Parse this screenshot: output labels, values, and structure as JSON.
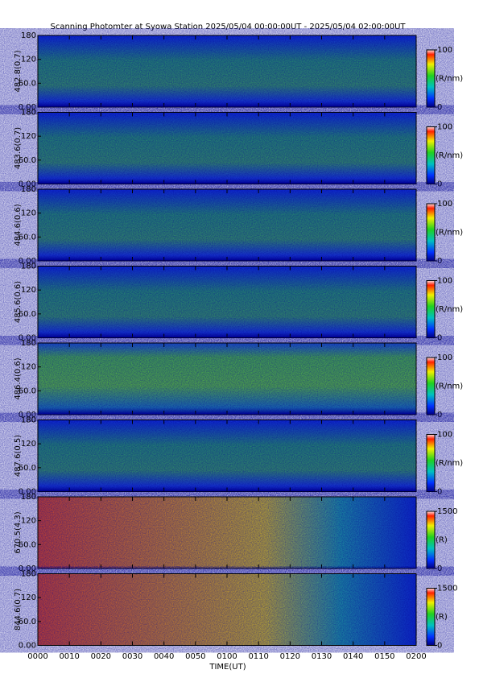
{
  "title": "Scanning Photomter at Syowa Station  2025/05/04 00:00:00UT - 2025/05/04 02:00:00UT",
  "xlabel": "TIME(UT)",
  "xlim": [
    0,
    120
  ],
  "xticks": [
    {
      "value": 0,
      "label": "0000"
    },
    {
      "value": 10,
      "label": "0010"
    },
    {
      "value": 20,
      "label": "0020"
    },
    {
      "value": 30,
      "label": "0030"
    },
    {
      "value": 40,
      "label": "0040"
    },
    {
      "value": 50,
      "label": "0050"
    },
    {
      "value": 60,
      "label": "0100"
    },
    {
      "value": 70,
      "label": "0110"
    },
    {
      "value": 80,
      "label": "0120"
    },
    {
      "value": 90,
      "label": "0130"
    },
    {
      "value": 100,
      "label": "0140"
    },
    {
      "value": 110,
      "label": "0150"
    },
    {
      "value": 120,
      "label": "0200"
    }
  ],
  "chart_data": [
    {
      "type": "heatmap",
      "ylabel": "482.8(0.7)",
      "ylim": [
        0,
        180
      ],
      "yticks": [
        {
          "value": 0,
          "label": "0.00"
        },
        {
          "value": 60,
          "label": "60.0"
        },
        120,
        180
      ],
      "colorbar": {
        "lim": [
          0,
          100
        ],
        "ticks": [
          0,
          100
        ],
        "label": "(R/nm)"
      }
    },
    {
      "type": "heatmap",
      "ylabel": "483.6(0.7)",
      "ylim": [
        0,
        180
      ],
      "yticks": [
        {
          "value": 0,
          "label": "0.00"
        },
        {
          "value": 60,
          "label": "60.0"
        },
        120,
        180
      ],
      "colorbar": {
        "lim": [
          0,
          100
        ],
        "ticks": [
          0,
          100
        ],
        "label": "(R/nm)"
      }
    },
    {
      "type": "heatmap",
      "ylabel": "484.6(0.6)",
      "ylim": [
        0,
        180
      ],
      "yticks": [
        {
          "value": 0,
          "label": "0.00"
        },
        {
          "value": 60,
          "label": "60.0"
        },
        120,
        180
      ],
      "colorbar": {
        "lim": [
          0,
          100
        ],
        "ticks": [
          0,
          100
        ],
        "label": "(R/nm)"
      }
    },
    {
      "type": "heatmap",
      "ylabel": "485.6(0.6)",
      "ylim": [
        0,
        180
      ],
      "yticks": [
        {
          "value": 0,
          "label": "0.00"
        },
        {
          "value": 60,
          "label": "60.0"
        },
        120,
        180
      ],
      "colorbar": {
        "lim": [
          0,
          100
        ],
        "ticks": [
          0,
          100
        ],
        "label": "(R/nm)"
      }
    },
    {
      "type": "heatmap",
      "ylabel": "486.4(0.6)",
      "ylim": [
        0,
        180
      ],
      "yticks": [
        {
          "value": 0,
          "label": "0.00"
        },
        {
          "value": 60,
          "label": "60.0"
        },
        120,
        180
      ],
      "colorbar": {
        "lim": [
          0,
          100
        ],
        "ticks": [
          0,
          100
        ],
        "label": "(R/nm)"
      }
    },
    {
      "type": "heatmap",
      "ylabel": "487.6(0.5)",
      "ylim": [
        0,
        180
      ],
      "yticks": [
        {
          "value": 0,
          "label": "0.00"
        },
        {
          "value": 60,
          "label": "60.0"
        },
        120,
        180
      ],
      "colorbar": {
        "lim": [
          0,
          100
        ],
        "ticks": [
          0,
          100
        ],
        "label": "(R/nm)"
      }
    },
    {
      "type": "heatmap",
      "ylabel": "670.5(4.3)",
      "ylim": [
        0,
        180
      ],
      "yticks": [
        {
          "value": 0,
          "label": "0.00"
        },
        {
          "value": 60,
          "label": "60.0"
        },
        120,
        180
      ],
      "colorbar": {
        "lim": [
          0,
          1500
        ],
        "ticks": [
          0,
          1500
        ],
        "label": "(R)"
      }
    },
    {
      "type": "heatmap",
      "ylabel": "844.6(0.7)",
      "ylim": [
        0,
        180
      ],
      "yticks": [
        {
          "value": 0,
          "label": "0.00"
        },
        {
          "value": 60,
          "label": "60.0"
        },
        120,
        180
      ],
      "colorbar": {
        "lim": [
          0,
          1500
        ],
        "ticks": [
          0,
          1500
        ],
        "label": "(R)"
      }
    }
  ]
}
